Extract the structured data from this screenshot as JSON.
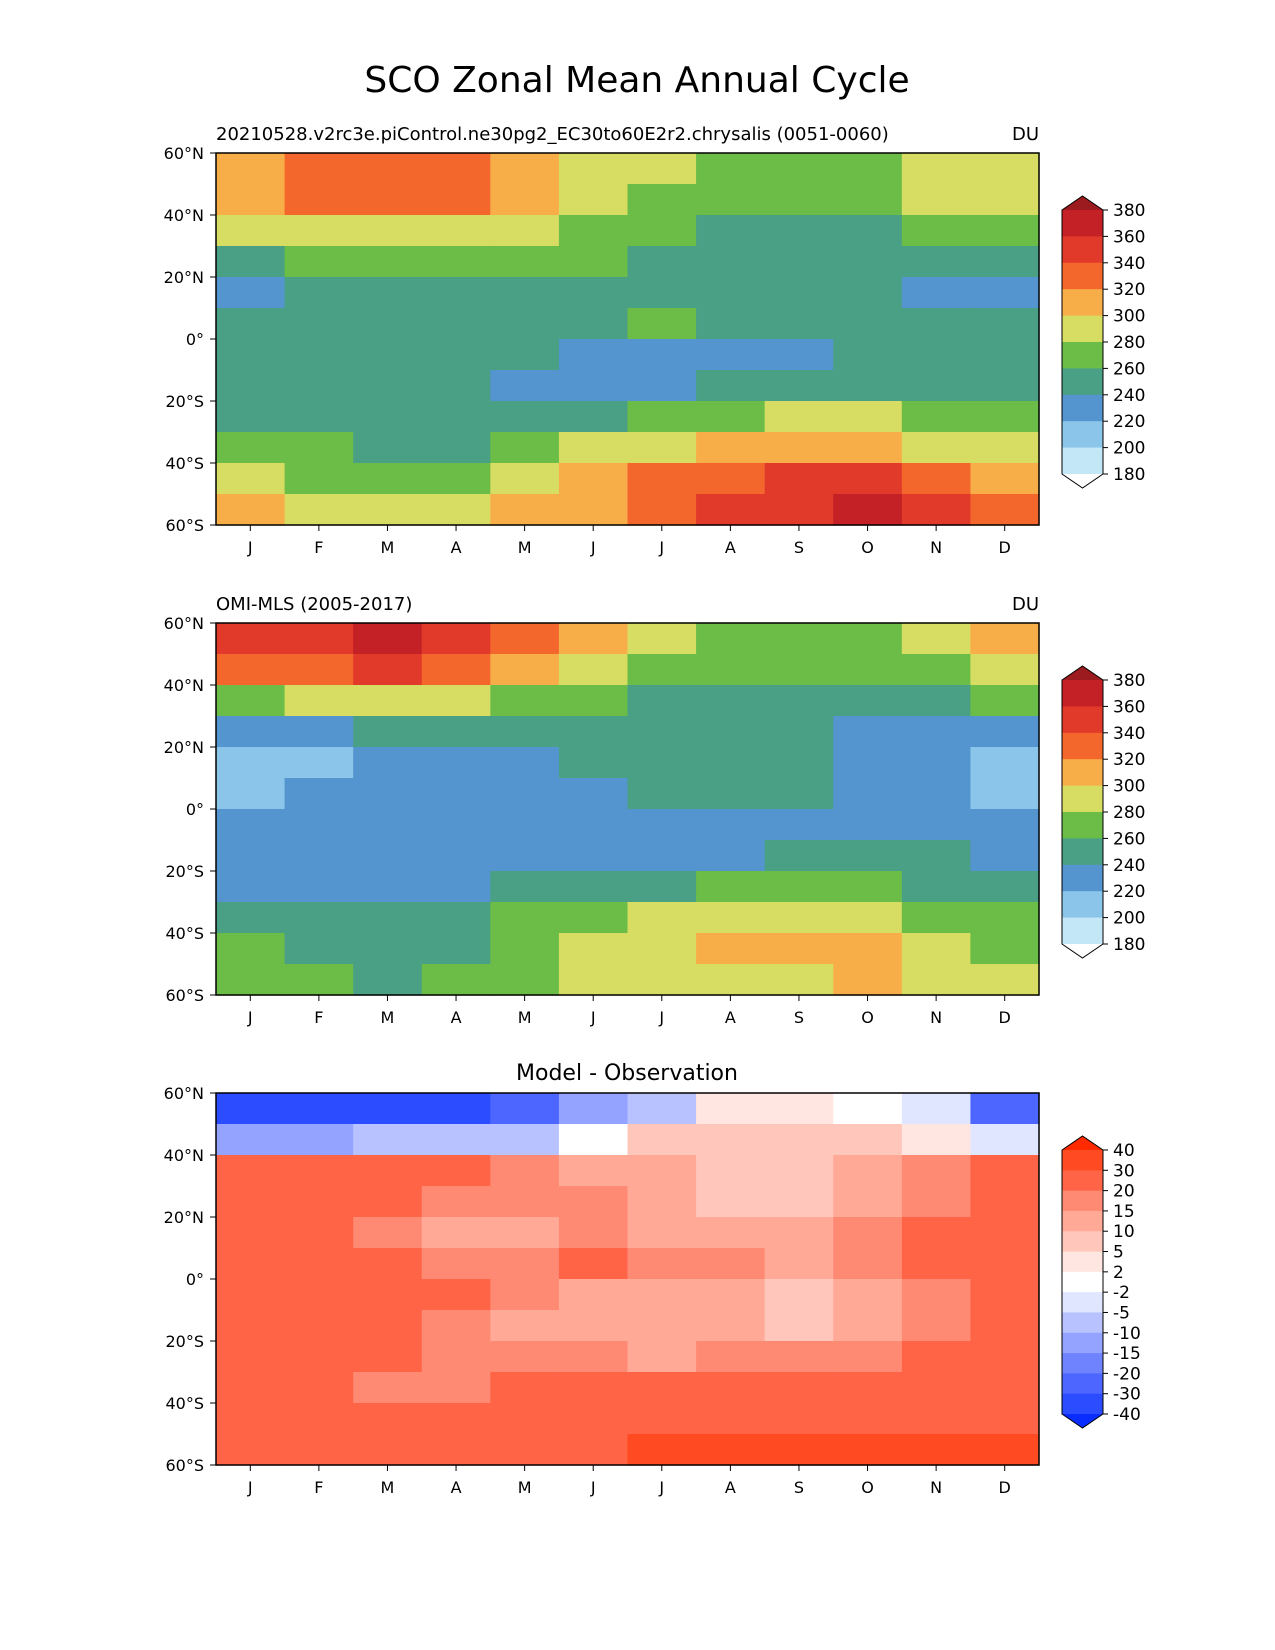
{
  "title": "SCO Zonal Mean Annual Cycle",
  "months": [
    "J",
    "F",
    "M",
    "A",
    "M",
    "J",
    "J",
    "A",
    "S",
    "O",
    "N",
    "D"
  ],
  "lat_ticks": [
    "60°N",
    "40°N",
    "20°N",
    "0°",
    "20°S",
    "40°S",
    "60°S"
  ],
  "panels": [
    {
      "id": "model",
      "title_left": "20210528.v2rc3e.piControl.ne30pg2_EC30to60E2r2.chrysalis (0051-0060)",
      "title_right": "DU",
      "title_center": "",
      "scale": "abs"
    },
    {
      "id": "obs",
      "title_left": "OMI-MLS (2005-2017)",
      "title_right": "DU",
      "title_center": "",
      "scale": "abs"
    },
    {
      "id": "diff",
      "title_left": "",
      "title_right": "",
      "title_center": "Model - Observation",
      "scale": "diff"
    }
  ],
  "colorbars": {
    "abs": {
      "labels": [
        "380",
        "360",
        "340",
        "320",
        "300",
        "280",
        "260",
        "240",
        "220",
        "200",
        "180"
      ],
      "colors": [
        "#9b1b1e",
        "#c32126",
        "#e13a2a",
        "#f3672d",
        "#f7ae48",
        "#d6dd62",
        "#6cbd48",
        "#4aa084",
        "#5495cf",
        "#8bc6ea",
        "#c4e7f8",
        "#ffffff"
      ]
    },
    "diff": {
      "labels": [
        "40",
        "30",
        "20",
        "15",
        "10",
        "5",
        "2",
        "-2",
        "-5",
        "-10",
        "-15",
        "-20",
        "-30",
        "-40"
      ],
      "colors": [
        "#ff2a00",
        "#ff4a22",
        "#ff6446",
        "#ff8a73",
        "#ffa996",
        "#ffc7bb",
        "#ffe6e0",
        "#ffffff",
        "#e0e6ff",
        "#b8c2ff",
        "#93a3ff",
        "#6f83ff",
        "#4d66ff",
        "#2b4cff",
        "#0a2dff"
      ]
    }
  },
  "chart_data": [
    {
      "type": "heatmap",
      "title": "20210528.v2rc3e.piControl.ne30pg2_EC30to60E2r2.chrysalis (0051-0060)",
      "units": "DU",
      "x": [
        "J",
        "F",
        "M",
        "A",
        "M",
        "J",
        "J",
        "A",
        "S",
        "O",
        "N",
        "D"
      ],
      "y": [
        55,
        45,
        35,
        25,
        15,
        5,
        -5,
        -15,
        -25,
        -35,
        -45,
        -55
      ],
      "ylim": [
        -60,
        60
      ],
      "values": [
        [
          305,
          335,
          335,
          335,
          305,
          290,
          290,
          270,
          270,
          270,
          290,
          290
        ],
        [
          300,
          320,
          330,
          320,
          300,
          290,
          270,
          270,
          260,
          265,
          280,
          290
        ],
        [
          285,
          290,
          290,
          290,
          285,
          270,
          270,
          255,
          255,
          255,
          265,
          270
        ],
        [
          255,
          265,
          265,
          265,
          265,
          260,
          255,
          255,
          255,
          255,
          255,
          255
        ],
        [
          230,
          255,
          255,
          255,
          255,
          255,
          255,
          255,
          255,
          255,
          230,
          230
        ],
        [
          245,
          250,
          250,
          250,
          250,
          250,
          265,
          255,
          255,
          255,
          255,
          245
        ],
        [
          250,
          250,
          250,
          250,
          250,
          235,
          235,
          235,
          235,
          240,
          250,
          250
        ],
        [
          250,
          250,
          250,
          250,
          235,
          235,
          235,
          240,
          240,
          250,
          250,
          250
        ],
        [
          255,
          255,
          255,
          255,
          255,
          255,
          265,
          270,
          280,
          280,
          275,
          270
        ],
        [
          270,
          260,
          255,
          255,
          270,
          285,
          295,
          305,
          315,
          310,
          295,
          285
        ],
        [
          290,
          275,
          270,
          275,
          290,
          310,
          330,
          335,
          345,
          340,
          320,
          310
        ],
        [
          305,
          290,
          290,
          290,
          300,
          310,
          330,
          345,
          355,
          360,
          345,
          335
        ]
      ]
    },
    {
      "type": "heatmap",
      "title": "OMI-MLS (2005-2017)",
      "units": "DU",
      "x": [
        "J",
        "F",
        "M",
        "A",
        "M",
        "J",
        "J",
        "A",
        "S",
        "O",
        "N",
        "D"
      ],
      "y": [
        55,
        45,
        35,
        25,
        15,
        5,
        -5,
        -15,
        -25,
        -35,
        -45,
        -55
      ],
      "ylim": [
        -60,
        60
      ],
      "values": [
        [
          340,
          355,
          365,
          355,
          335,
          305,
          290,
          270,
          270,
          270,
          285,
          305
        ],
        [
          320,
          335,
          340,
          330,
          310,
          285,
          270,
          270,
          265,
          260,
          270,
          290
        ],
        [
          270,
          280,
          280,
          280,
          275,
          265,
          255,
          255,
          255,
          250,
          255,
          265
        ],
        [
          235,
          235,
          250,
          255,
          255,
          255,
          255,
          250,
          255,
          235,
          235,
          235
        ],
        [
          210,
          215,
          235,
          235,
          235,
          245,
          250,
          250,
          245,
          235,
          235,
          210
        ],
        [
          210,
          230,
          230,
          230,
          230,
          230,
          245,
          245,
          245,
          230,
          230,
          215
        ],
        [
          230,
          230,
          230,
          230,
          230,
          230,
          230,
          230,
          230,
          230,
          230,
          230
        ],
        [
          230,
          230,
          230,
          230,
          230,
          230,
          235,
          235,
          250,
          250,
          250,
          230
        ],
        [
          235,
          235,
          235,
          235,
          245,
          250,
          255,
          260,
          265,
          265,
          255,
          250
        ],
        [
          255,
          245,
          245,
          250,
          270,
          275,
          285,
          290,
          295,
          290,
          275,
          265
        ],
        [
          270,
          255,
          250,
          255,
          270,
          285,
          290,
          305,
          305,
          300,
          290,
          270
        ],
        [
          275,
          265,
          255,
          260,
          270,
          280,
          290,
          295,
          295,
          300,
          290,
          285
        ]
      ]
    },
    {
      "type": "heatmap",
      "title": "Model - Observation",
      "units": "",
      "x": [
        "J",
        "F",
        "M",
        "A",
        "M",
        "J",
        "J",
        "A",
        "S",
        "O",
        "N",
        "D"
      ],
      "y": [
        55,
        45,
        35,
        25,
        15,
        5,
        -5,
        -15,
        -25,
        -35,
        -45,
        -55
      ],
      "ylim": [
        -60,
        60
      ],
      "values": [
        [
          -38,
          -38,
          -36,
          -33,
          -28,
          -14,
          -8,
          2,
          3,
          1,
          -4,
          -24
        ],
        [
          -12,
          -12,
          -8,
          -7,
          -6,
          0,
          5,
          6,
          6,
          5,
          2,
          -3
        ],
        [
          23,
          25,
          22,
          22,
          18,
          13,
          13,
          9,
          8,
          12,
          18,
          22
        ],
        [
          22,
          22,
          22,
          18,
          17,
          15,
          13,
          9,
          8,
          13,
          18,
          22
        ],
        [
          22,
          22,
          18,
          14,
          14,
          17,
          14,
          10,
          11,
          17,
          20,
          22
        ],
        [
          22,
          22,
          22,
          18,
          18,
          20,
          18,
          15,
          13,
          17,
          20,
          22
        ],
        [
          22,
          27,
          22,
          20,
          18,
          14,
          13,
          12,
          7,
          12,
          18,
          22
        ],
        [
          22,
          22,
          22,
          17,
          14,
          14,
          10,
          10,
          8,
          10,
          18,
          22
        ],
        [
          22,
          22,
          22,
          18,
          17,
          15,
          14,
          17,
          17,
          17,
          20,
          22
        ],
        [
          27,
          22,
          18,
          18,
          20,
          22,
          22,
          22,
          22,
          22,
          22,
          25
        ],
        [
          27,
          22,
          22,
          22,
          22,
          25,
          25,
          25,
          22,
          22,
          25,
          27
        ],
        [
          27,
          27,
          27,
          27,
          27,
          27,
          32,
          35,
          35,
          35,
          35,
          35
        ]
      ]
    }
  ]
}
